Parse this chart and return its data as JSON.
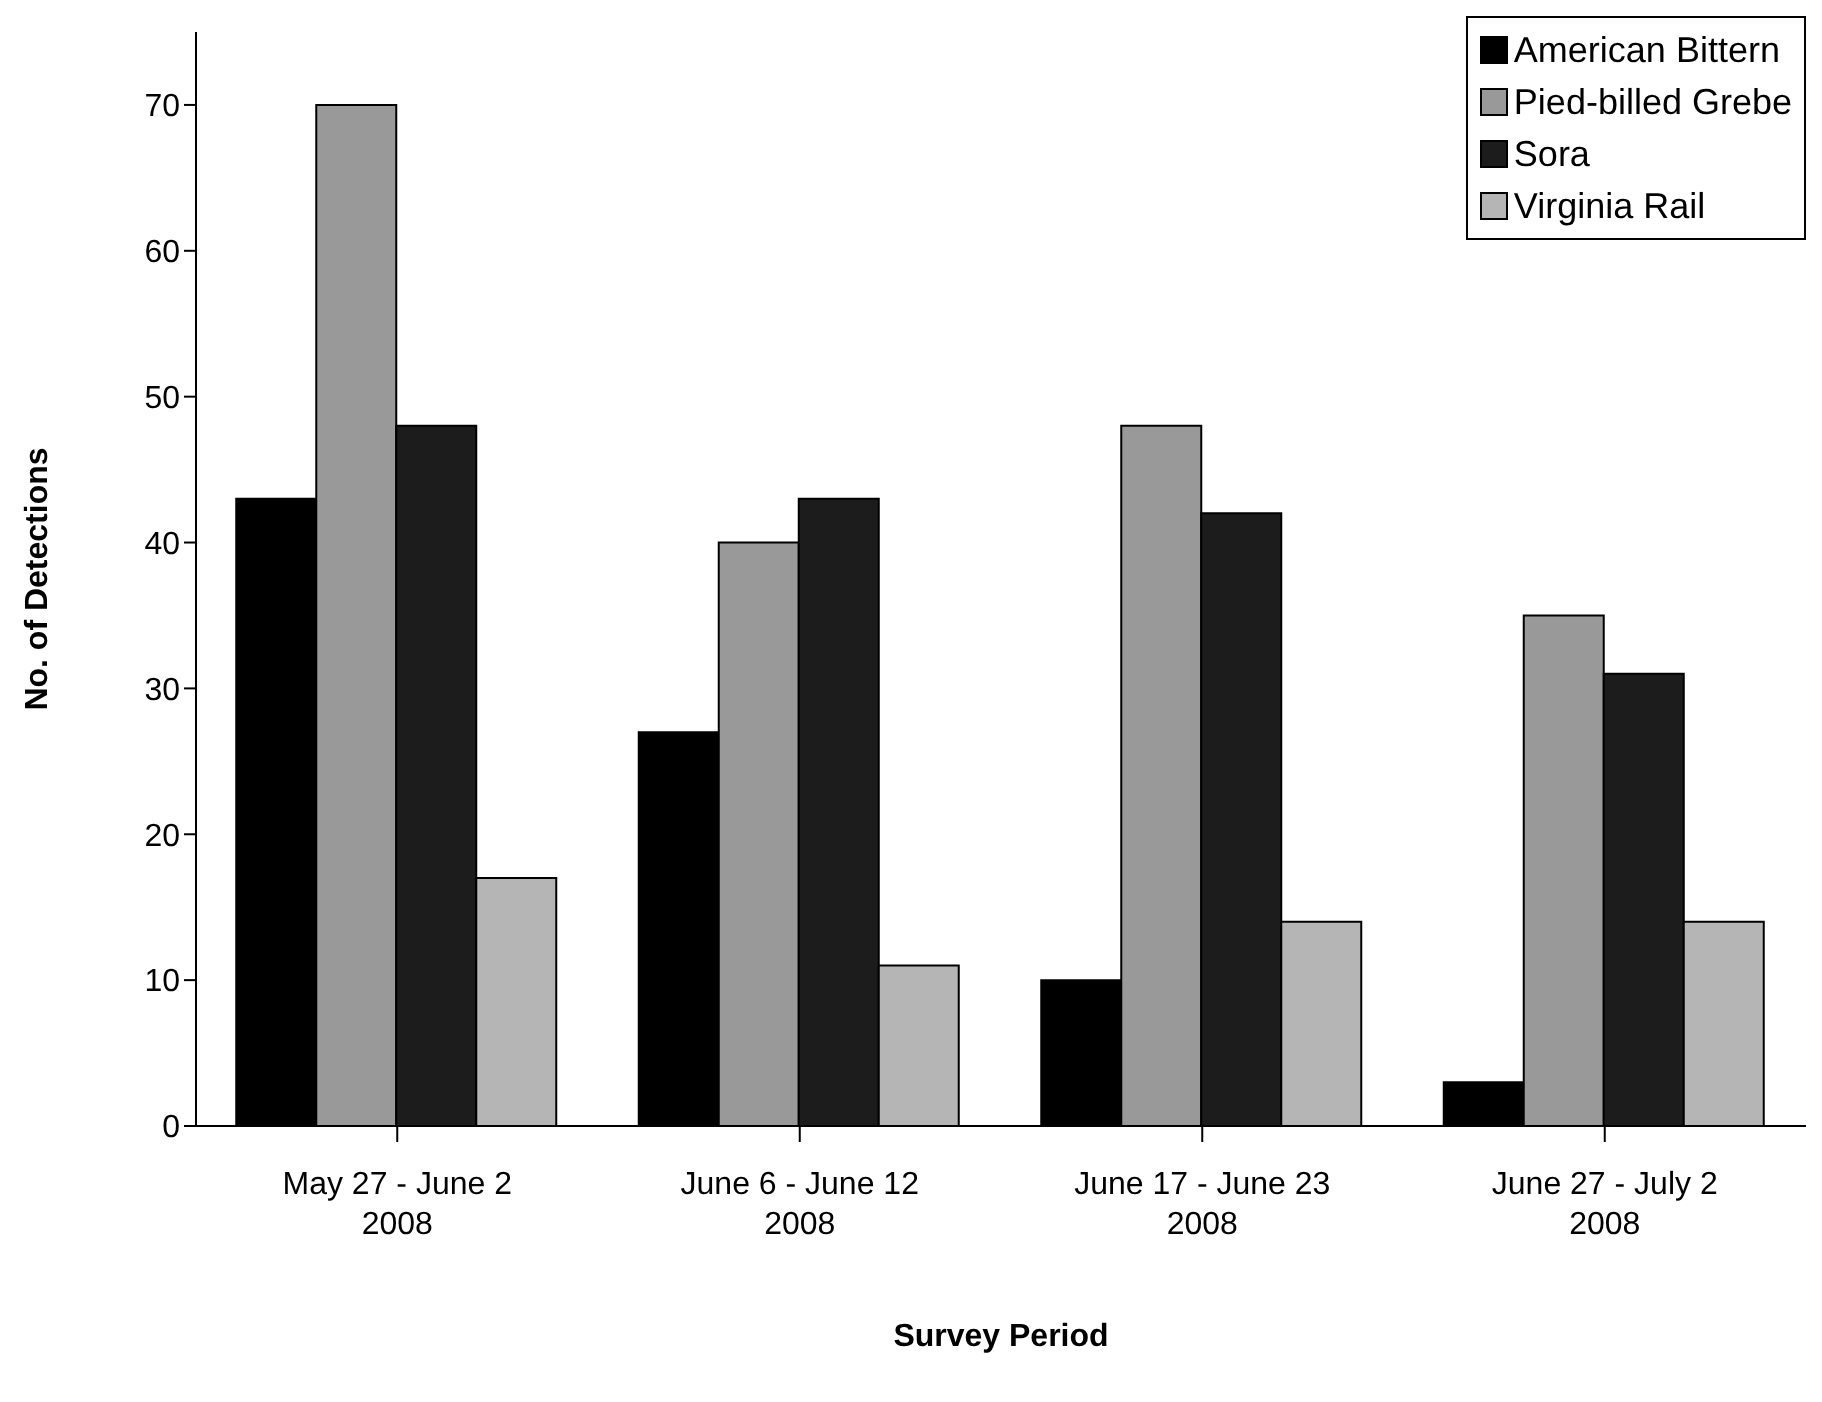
{
  "chart_data": {
    "type": "bar",
    "xlabel": "Survey Period",
    "ylabel": "No. of Detections",
    "categories": [
      "May 27 - June 2\n2008",
      "June 6 - June 12\n2008",
      "June 17 - June 23\n2008",
      "June 27 - July 2\n2008"
    ],
    "series": [
      {
        "name": "American Bittern",
        "color": "#000000",
        "values": [
          43,
          27,
          10,
          3
        ]
      },
      {
        "name": "Pied-billed Grebe",
        "color": "#999999",
        "values": [
          70,
          40,
          48,
          35
        ]
      },
      {
        "name": "Sora",
        "color": "#1c1c1c",
        "values": [
          48,
          43,
          42,
          31
        ]
      },
      {
        "name": "Virginia Rail",
        "color": "#b5b5b5",
        "values": [
          17,
          11,
          14,
          14
        ]
      }
    ],
    "ylim": [
      0,
      75
    ],
    "yticks": [
      0,
      10,
      20,
      30,
      40,
      50,
      60,
      70
    ],
    "grid": false,
    "legend": "top right"
  }
}
